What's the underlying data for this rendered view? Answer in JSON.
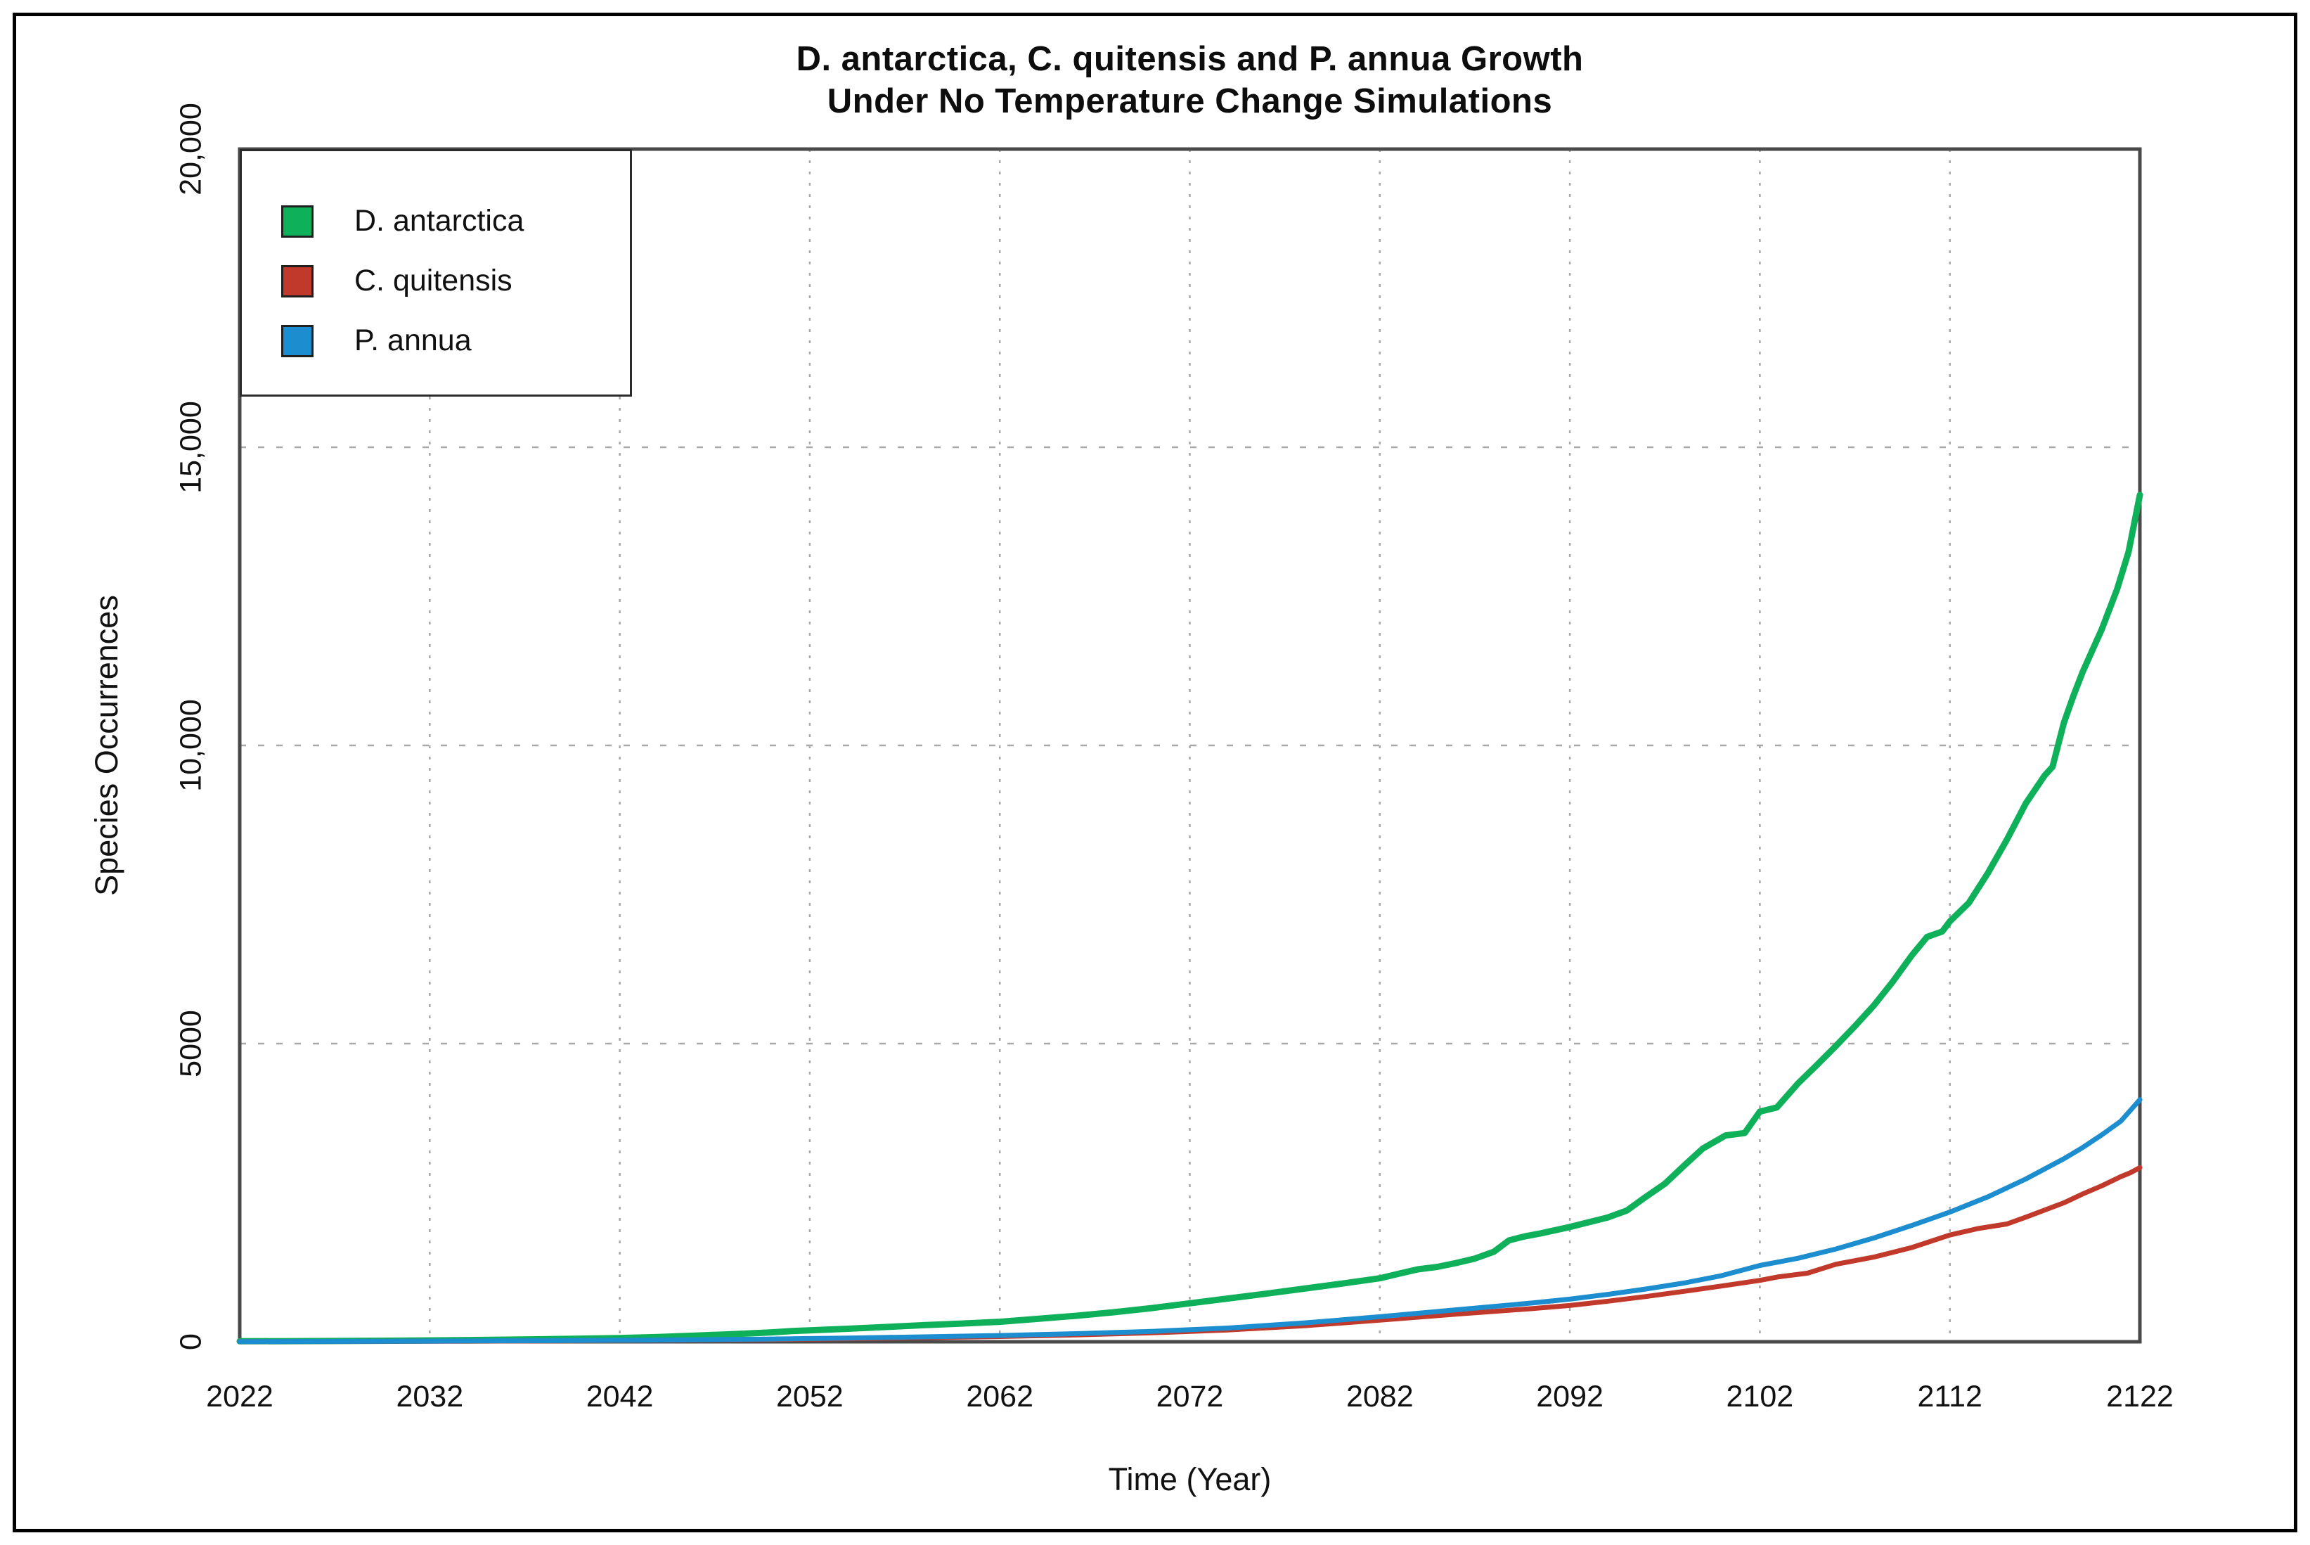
{
  "chart_data": {
    "type": "line",
    "title_line1": "D. antarctica, C. quitensis and P. annua Growth",
    "title_line2": "Under No Temperature Change Simulations",
    "xlabel": "Time (Year)",
    "ylabel": "Species Occurrences",
    "xlim": [
      2022,
      2122
    ],
    "ylim": [
      0,
      20000
    ],
    "grid": "dotted",
    "grid_color": "#a8a8a8",
    "frame_color": "#4a4a4a",
    "legend_position": "top-left",
    "x_ticks": [
      {
        "year": 2022,
        "label": "2022"
      },
      {
        "year": 2032,
        "label": "2032"
      },
      {
        "year": 2042,
        "label": "2042"
      },
      {
        "year": 2052,
        "label": "2052"
      },
      {
        "year": 2062,
        "label": "2062"
      },
      {
        "year": 2072,
        "label": "2072"
      },
      {
        "year": 2082,
        "label": "2082"
      },
      {
        "year": 2092,
        "label": "2092"
      },
      {
        "year": 2102,
        "label": "2102"
      },
      {
        "year": 2112,
        "label": "2112"
      },
      {
        "year": 2122,
        "label": "2122"
      }
    ],
    "y_ticks": [
      {
        "value": 0,
        "label": "0"
      },
      {
        "value": 5000,
        "label": "5000"
      },
      {
        "value": 10000,
        "label": "10,000"
      },
      {
        "value": 15000,
        "label": "15,000"
      },
      {
        "value": 20000,
        "label": "20,000"
      }
    ],
    "series": [
      {
        "name": "D. antarctica",
        "color": "#0fb05a",
        "width": 9,
        "points": [
          [
            2022,
            8
          ],
          [
            2026,
            12
          ],
          [
            2030,
            18
          ],
          [
            2034,
            28
          ],
          [
            2038,
            42
          ],
          [
            2042,
            62
          ],
          [
            2044,
            80
          ],
          [
            2046,
            103
          ],
          [
            2048,
            128
          ],
          [
            2050,
            158
          ],
          [
            2051,
            178
          ],
          [
            2052,
            192
          ],
          [
            2054,
            218
          ],
          [
            2056,
            248
          ],
          [
            2058,
            278
          ],
          [
            2060,
            305
          ],
          [
            2062,
            335
          ],
          [
            2064,
            385
          ],
          [
            2066,
            435
          ],
          [
            2068,
            495
          ],
          [
            2070,
            565
          ],
          [
            2072,
            645
          ],
          [
            2074,
            725
          ],
          [
            2076,
            805
          ],
          [
            2078,
            890
          ],
          [
            2080,
            975
          ],
          [
            2082,
            1065
          ],
          [
            2083,
            1140
          ],
          [
            2084,
            1215
          ],
          [
            2085,
            1255
          ],
          [
            2086,
            1320
          ],
          [
            2087,
            1395
          ],
          [
            2088,
            1510
          ],
          [
            2088.8,
            1700
          ],
          [
            2089.6,
            1765
          ],
          [
            2090.5,
            1820
          ],
          [
            2091,
            1855
          ],
          [
            2092,
            1925
          ],
          [
            2093,
            2005
          ],
          [
            2094,
            2085
          ],
          [
            2095,
            2200
          ],
          [
            2096,
            2430
          ],
          [
            2097,
            2650
          ],
          [
            2098,
            2950
          ],
          [
            2099,
            3240
          ],
          [
            2100.2,
            3460
          ],
          [
            2101.2,
            3500
          ],
          [
            2102,
            3860
          ],
          [
            2102.9,
            3930
          ],
          [
            2104,
            4330
          ],
          [
            2105,
            4640
          ],
          [
            2106,
            4960
          ],
          [
            2107,
            5290
          ],
          [
            2108,
            5640
          ],
          [
            2109,
            6040
          ],
          [
            2110,
            6480
          ],
          [
            2110.8,
            6790
          ],
          [
            2111.6,
            6880
          ],
          [
            2112,
            7050
          ],
          [
            2113,
            7360
          ],
          [
            2114,
            7860
          ],
          [
            2115,
            8420
          ],
          [
            2116,
            9030
          ],
          [
            2117,
            9500
          ],
          [
            2117.4,
            9640
          ],
          [
            2118,
            10380
          ],
          [
            2118.5,
            10830
          ],
          [
            2119,
            11240
          ],
          [
            2120,
            11950
          ],
          [
            2120.8,
            12620
          ],
          [
            2121.4,
            13240
          ],
          [
            2122,
            14200
          ]
        ]
      },
      {
        "name": "C. quitensis",
        "color": "#c1392b",
        "width": 7,
        "points": [
          [
            2022,
            3
          ],
          [
            2026,
            5
          ],
          [
            2030,
            7
          ],
          [
            2034,
            10
          ],
          [
            2038,
            15
          ],
          [
            2042,
            21
          ],
          [
            2046,
            29
          ],
          [
            2050,
            39
          ],
          [
            2054,
            52
          ],
          [
            2058,
            69
          ],
          [
            2062,
            89
          ],
          [
            2066,
            116
          ],
          [
            2070,
            150
          ],
          [
            2074,
            198
          ],
          [
            2078,
            268
          ],
          [
            2082,
            362
          ],
          [
            2086,
            462
          ],
          [
            2090,
            555
          ],
          [
            2092,
            608
          ],
          [
            2094,
            680
          ],
          [
            2096,
            758
          ],
          [
            2098,
            845
          ],
          [
            2100,
            935
          ],
          [
            2102,
            1030
          ],
          [
            2103,
            1090
          ],
          [
            2104.5,
            1150
          ],
          [
            2106,
            1300
          ],
          [
            2108,
            1420
          ],
          [
            2110,
            1580
          ],
          [
            2112,
            1790
          ],
          [
            2113.5,
            1900
          ],
          [
            2115,
            1975
          ],
          [
            2116,
            2090
          ],
          [
            2117,
            2210
          ],
          [
            2118,
            2330
          ],
          [
            2119,
            2480
          ],
          [
            2120,
            2615
          ],
          [
            2121,
            2770
          ],
          [
            2121.5,
            2835
          ],
          [
            2122,
            2920
          ]
        ]
      },
      {
        "name": "P. annua",
        "color": "#1c8dce",
        "width": 7,
        "points": [
          [
            2022,
            4
          ],
          [
            2026,
            6
          ],
          [
            2030,
            9
          ],
          [
            2034,
            13
          ],
          [
            2038,
            18
          ],
          [
            2042,
            25
          ],
          [
            2046,
            34
          ],
          [
            2050,
            46
          ],
          [
            2054,
            62
          ],
          [
            2058,
            82
          ],
          [
            2062,
            105
          ],
          [
            2066,
            136
          ],
          [
            2070,
            175
          ],
          [
            2074,
            230
          ],
          [
            2078,
            315
          ],
          [
            2082,
            420
          ],
          [
            2086,
            535
          ],
          [
            2090,
            650
          ],
          [
            2092,
            715
          ],
          [
            2094,
            795
          ],
          [
            2096,
            885
          ],
          [
            2098,
            985
          ],
          [
            2100,
            1110
          ],
          [
            2102,
            1280
          ],
          [
            2104,
            1400
          ],
          [
            2106,
            1555
          ],
          [
            2108,
            1740
          ],
          [
            2110,
            1950
          ],
          [
            2112,
            2175
          ],
          [
            2114,
            2430
          ],
          [
            2116,
            2730
          ],
          [
            2118,
            3070
          ],
          [
            2119,
            3260
          ],
          [
            2120,
            3470
          ],
          [
            2121,
            3700
          ],
          [
            2122,
            4060
          ]
        ]
      }
    ]
  }
}
